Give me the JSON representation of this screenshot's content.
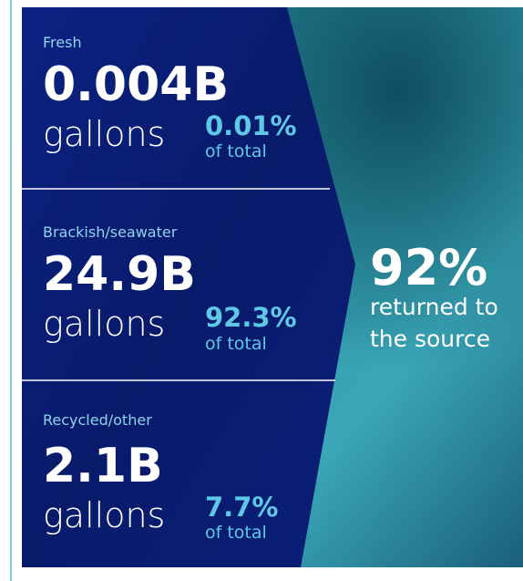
{
  "sections": [
    {
      "label": "Fresh",
      "value": "0.004B",
      "unit": "gallons",
      "percent": "0.01%",
      "percent_note": "of total"
    },
    {
      "label": "Brackish/seawater",
      "value": "24.9B",
      "unit": "gallons",
      "percent": "92.3%",
      "percent_note": "of total"
    },
    {
      "label": "Recycled/other",
      "value": "2.1B",
      "unit": "gallons",
      "percent": "7.7%",
      "percent_note": "of total"
    }
  ],
  "summary": {
    "value": "92%",
    "line1": "returned to",
    "line2": "the source"
  }
}
